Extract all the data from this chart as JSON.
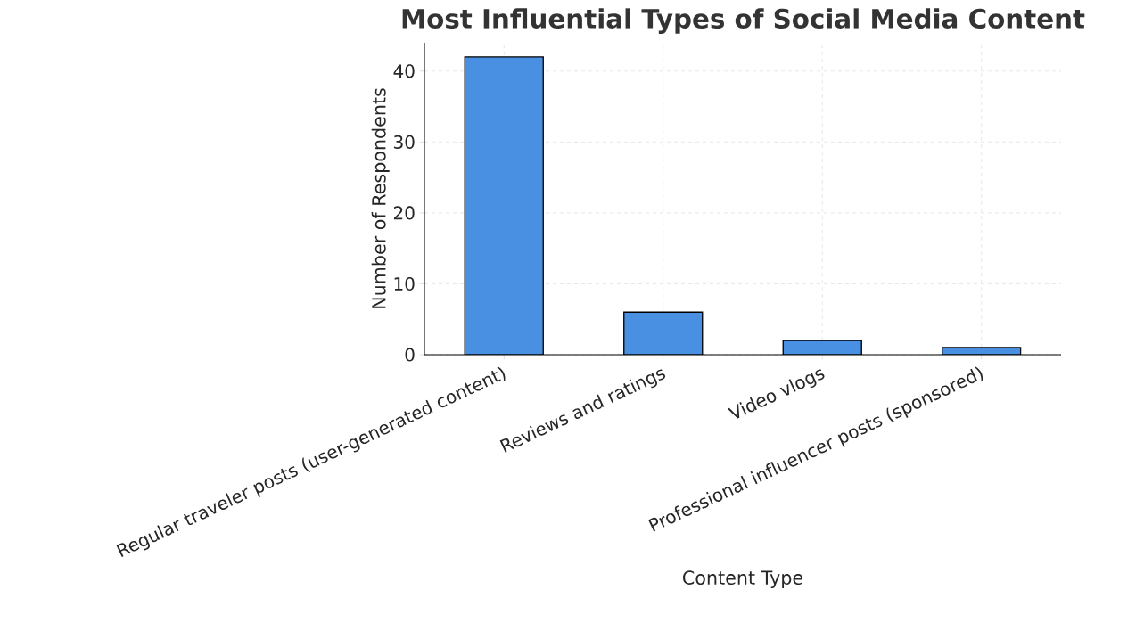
{
  "chart_data": {
    "type": "bar",
    "title": "Most Influential Types of Social Media Content",
    "xlabel": "Content Type",
    "ylabel": "Number of Respondents",
    "categories": [
      "Regular traveler posts (user-generated content)",
      "Reviews and ratings",
      "Video vlogs",
      "Professional influencer posts (sponsored)"
    ],
    "values": [
      42,
      6,
      2,
      1
    ],
    "color": "#4a90e2",
    "ylim": [
      0,
      44
    ],
    "yticks": [
      0,
      10,
      20,
      30,
      40
    ],
    "grid": true
  }
}
